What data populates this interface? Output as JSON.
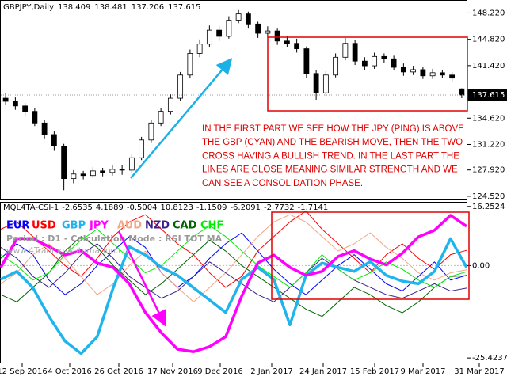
{
  "chart_data": [
    {
      "type": "candlestick",
      "title": "GBPJPY,Daily",
      "open": [
        137.2,
        136.8,
        136.2,
        135.5,
        134.0,
        132.5,
        131.0,
        126.8,
        127.4,
        127.2,
        127.8,
        127.6,
        128.0,
        127.9,
        129.5,
        131.8,
        134.0,
        135.5,
        137.2,
        140.2,
        143.0,
        144.2,
        146.0,
        145.2,
        147.3,
        148.1,
        146.8,
        145.6,
        145.9,
        144.6,
        144.3,
        143.6,
        140.4,
        137.9,
        140.2,
        142.5,
        144.3,
        142.0,
        141.4,
        142.6,
        142.3,
        141.2,
        140.6,
        140.9,
        140.1,
        140.5,
        140.2,
        138.409
      ],
      "high": [
        137.9,
        137.3,
        136.6,
        135.9,
        134.4,
        132.9,
        131.3,
        127.9,
        127.8,
        128.3,
        128.2,
        128.5,
        128.6,
        129.9,
        132.2,
        134.4,
        135.9,
        137.7,
        140.6,
        143.5,
        144.8,
        146.6,
        146.5,
        147.8,
        148.6,
        148.4,
        147.1,
        146.5,
        146.2,
        145.2,
        144.9,
        143.9,
        140.8,
        140.7,
        143.0,
        145.0,
        144.7,
        142.5,
        143.1,
        143.0,
        142.7,
        141.7,
        141.4,
        141.3,
        141.0,
        140.9,
        140.6,
        138.481
      ],
      "low": [
        136.3,
        135.7,
        134.9,
        133.6,
        132.0,
        130.4,
        125.3,
        126.2,
        126.7,
        126.9,
        127.1,
        127.2,
        127.3,
        127.6,
        129.2,
        131.4,
        133.6,
        135.1,
        136.9,
        139.8,
        142.5,
        143.8,
        144.6,
        144.9,
        146.9,
        146.2,
        145.0,
        145.1,
        144.1,
        143.8,
        143.1,
        139.8,
        137.0,
        137.5,
        139.9,
        142.1,
        141.5,
        140.8,
        141.0,
        141.8,
        140.8,
        140.1,
        140.2,
        139.7,
        139.7,
        139.8,
        139.3,
        137.206
      ],
      "close": [
        136.8,
        136.2,
        135.5,
        134.0,
        132.5,
        131.0,
        126.8,
        127.4,
        127.2,
        127.8,
        127.6,
        128.0,
        127.9,
        129.5,
        131.8,
        134.0,
        135.5,
        137.2,
        140.2,
        143.0,
        144.2,
        146.0,
        145.2,
        147.3,
        148.1,
        146.8,
        145.6,
        145.9,
        144.6,
        144.3,
        143.6,
        140.4,
        137.9,
        140.2,
        142.5,
        144.3,
        142.0,
        141.4,
        142.6,
        142.3,
        141.2,
        140.6,
        140.9,
        140.1,
        140.5,
        140.2,
        139.8,
        137.615
      ],
      "up_color": "#ffffff",
      "down_color": "#000000",
      "ylim": [
        124.1,
        149.7
      ],
      "yticks": [
        {
          "value": 148.22,
          "label": "148.220"
        },
        {
          "value": 144.82,
          "label": "144.820"
        },
        {
          "value": 141.42,
          "label": "141.420"
        },
        {
          "value": 138.02,
          "label": "138.020"
        },
        {
          "value": 134.62,
          "label": "134.620"
        },
        {
          "value": 131.22,
          "label": "131.220"
        },
        {
          "value": 127.92,
          "label": "127.920"
        },
        {
          "value": 124.52,
          "label": "124.520"
        }
      ],
      "annotation": [
        "IN THE FIRST PART WE SEE HOW THE JPY (PING) IS ABOVE",
        "THE GBP (CYAN) AND THE BEARISH MOVE, THEN THE TWO",
        "CROSS HAVING A BULLISH TREND. IN THE LAST PART THE",
        "LINES ARE CLOSE MEANING SIMILAR STRENGTH AND WE",
        "CAN SEE A CONSOLIDATION PHASE."
      ]
    },
    {
      "type": "line",
      "title": "MQL4TA-CSI-1",
      "subtitle": "Period : D1 - Calculation Mode : RSI TOT MA",
      "watermark": "www.4Trading-Automation.com",
      "ylim": [
        -26.7,
        17.3
      ],
      "yticks": [
        16.2524,
        {
          "value": 0,
          "label": "0.00"
        },
        -25.4237
      ],
      "xticks": [
        "12 Sep 2016",
        "4 Oct 2016",
        "26 Oct 2016",
        "17 Nov 2016",
        "9 Dec 2016",
        "2 Jan 2017",
        "24 Jan 2017",
        "15 Feb 2017",
        "9 Mar 2017",
        "31 Mar 2017"
      ],
      "series": [
        {
          "name": "EUR",
          "color": "#0000ff",
          "width": 1,
          "values": [
            2,
            6,
            3,
            -4,
            -8,
            -5,
            0,
            4,
            8,
            5,
            -2,
            -6,
            -3,
            2,
            6,
            9,
            4,
            -1,
            -5,
            -8,
            -4,
            0,
            3,
            -1,
            -5,
            -7,
            -3,
            1,
            -4,
            -2.6535
          ]
        },
        {
          "name": "USD",
          "color": "#ff0000",
          "width": 1,
          "values": [
            10,
            12,
            8,
            4,
            0,
            -3,
            2,
            8,
            12,
            14,
            10,
            6,
            3,
            -2,
            -6,
            -3,
            4,
            8,
            12,
            15,
            10,
            6,
            2,
            -2,
            3,
            6,
            2,
            -1,
            3,
            4.1889
          ]
        },
        {
          "name": "GBP",
          "color": "#20b4ec",
          "width": 3.5,
          "values": [
            -3.8,
            -1.6,
            -6.1,
            -14,
            -20.8,
            -24.2,
            -19.6,
            -6.1,
            5.2,
            2.9,
            -0.5,
            -2.7,
            -6.1,
            -9.5,
            -12.9,
            -3.8,
            -0.5,
            -3.8,
            -16.3,
            -2.7,
            0.7,
            -0.5,
            -1.6,
            1.1,
            -2.7,
            -4.3,
            -5.0,
            -1.6,
            7.4,
            -0.5004
          ]
        },
        {
          "name": "JPY",
          "color": "#ff00ff",
          "width": 3.5,
          "values": [
            -0.5,
            7.4,
            7.4,
            5.2,
            2.9,
            4.1,
            0.7,
            -0.5,
            -5.0,
            -12.9,
            -18.5,
            -23.0,
            -23.7,
            -22.3,
            -19.6,
            -8.4,
            0.7,
            2.9,
            -0.5,
            -2.7,
            -1.6,
            2.5,
            4.1,
            1.8,
            0.2,
            3.4,
            7.9,
            9.7,
            13.8,
            10.8123
          ]
        },
        {
          "name": "AUD",
          "color": "#f4a582",
          "width": 1,
          "values": [
            -5,
            -2,
            3,
            6,
            2,
            -3,
            -8,
            -5,
            0,
            4,
            -2,
            -6,
            -10,
            -6,
            -2,
            3,
            8,
            12,
            14,
            12,
            8,
            4,
            6,
            9,
            5,
            2,
            -2,
            -4,
            -2,
            -1.1509
          ]
        },
        {
          "name": "NZD",
          "color": "#3a1f8a",
          "width": 1,
          "values": [
            5,
            2,
            -3,
            -6,
            -2,
            3,
            6,
            2,
            -3,
            -6,
            -9,
            -7,
            -3,
            1,
            -2,
            -5,
            -8,
            -10,
            -6,
            -2,
            2,
            -1,
            -4,
            -6,
            -8,
            -9,
            -7,
            -5,
            -7,
            -6.2091
          ]
        },
        {
          "name": "CAD",
          "color": "#006400",
          "width": 1,
          "values": [
            -8,
            -10,
            -6,
            -2,
            4,
            8,
            5,
            0,
            -4,
            -8,
            -5,
            -1,
            3,
            7,
            4,
            0,
            -3,
            -6,
            -9,
            -12,
            -14,
            -10,
            -6,
            -8,
            -11,
            -13,
            -10,
            -6,
            -3,
            -2.7732
          ]
        },
        {
          "name": "CHF",
          "color": "#00ee00",
          "width": 1,
          "values": [
            3,
            0,
            -4,
            -2,
            3,
            7,
            10,
            6,
            2,
            -2,
            0,
            4,
            8,
            11,
            8,
            4,
            0,
            -3,
            -6,
            -2,
            3,
            -1,
            -4,
            -2,
            1,
            -1,
            -4,
            -6,
            -3,
            -1.7141
          ]
        }
      ]
    }
  ]
}
